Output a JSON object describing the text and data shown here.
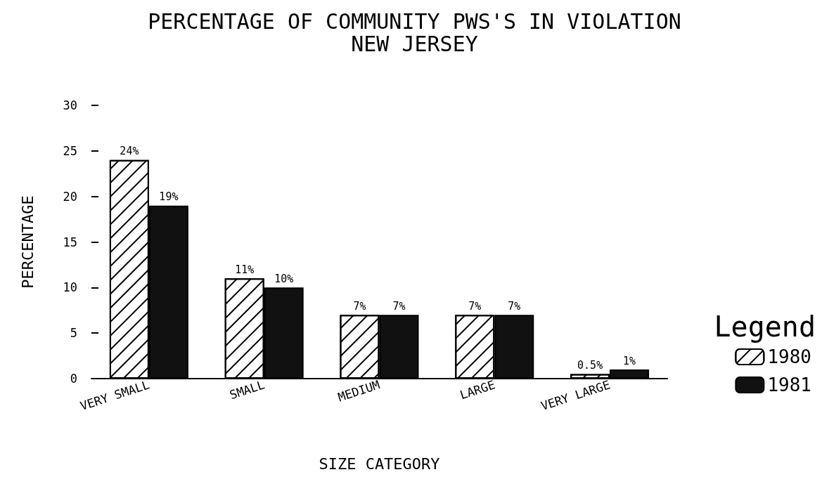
{
  "chart_data": {
    "type": "bar",
    "title": "PERCENTAGE OF COMMUNITY PWS'S IN VIOLATION",
    "subtitle": "NEW JERSEY",
    "xlabel": "SIZE CATEGORY",
    "ylabel": "PERCENTAGE",
    "legend_title": "Legend",
    "categories": [
      "VERY SMALL",
      "SMALL",
      "MEDIUM",
      "LARGE",
      "VERY LARGE"
    ],
    "series": [
      {
        "name": "1980",
        "color": "#ffffff",
        "values": [
          24,
          11,
          7,
          7,
          0.5
        ],
        "value_labels": [
          "24%",
          "11%",
          "7%",
          "7%",
          "0.5%"
        ]
      },
      {
        "name": "1981",
        "color": "#111111",
        "values": [
          19,
          10,
          7,
          7,
          1
        ],
        "value_labels": [
          "19%",
          "10%",
          "7%",
          "7%",
          "1%"
        ]
      }
    ],
    "ylim": [
      0,
      30
    ],
    "yticks": [
      0,
      5,
      10,
      15,
      20,
      25,
      30
    ],
    "grid": false,
    "legend": "right"
  }
}
